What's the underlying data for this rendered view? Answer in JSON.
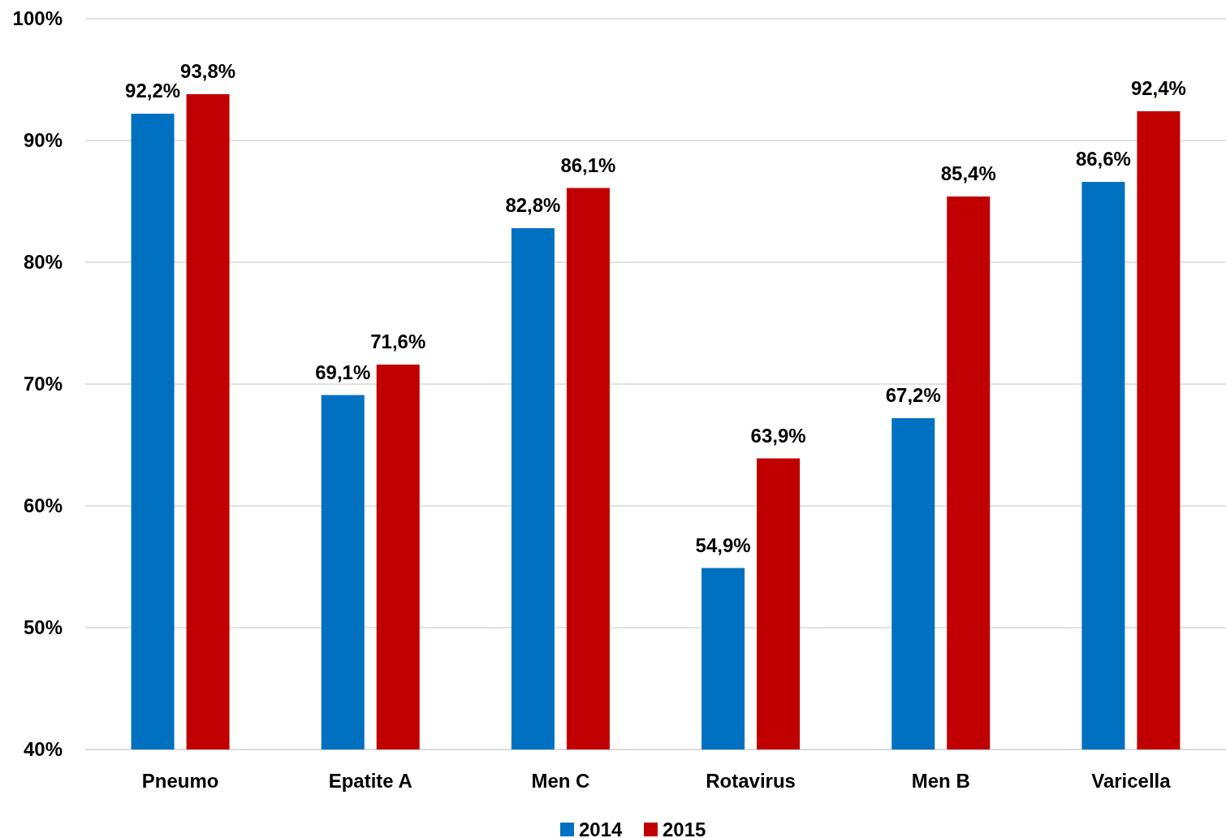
{
  "chart_data": {
    "type": "bar",
    "categories": [
      "Pneumo",
      "Epatite A",
      "Men C",
      "Rotavirus",
      "Men B",
      "Varicella"
    ],
    "series": [
      {
        "name": "2014",
        "color": "#0070c0",
        "values": [
          92.2,
          69.1,
          82.8,
          54.9,
          67.2,
          86.6
        ],
        "value_labels": [
          "92,2%",
          "69,1%",
          "82,8%",
          "54,9%",
          "67,2%",
          "86,6%"
        ]
      },
      {
        "name": "2015",
        "color": "#c00000",
        "values": [
          93.8,
          71.6,
          86.1,
          63.9,
          85.4,
          92.4
        ],
        "value_labels": [
          "93,8%",
          "71,6%",
          "86,1%",
          "63,9%",
          "85,4%",
          "92,4%"
        ]
      }
    ],
    "ylim": [
      40,
      100
    ],
    "yticks": [
      {
        "value": 40,
        "label": "40%"
      },
      {
        "value": 50,
        "label": "50%"
      },
      {
        "value": 60,
        "label": "60%"
      },
      {
        "value": 70,
        "label": "70%"
      },
      {
        "value": 80,
        "label": "80%"
      },
      {
        "value": 90,
        "label": "90%"
      },
      {
        "value": 100,
        "label": "100%"
      }
    ],
    "grid": "y",
    "legend": "bottom"
  }
}
